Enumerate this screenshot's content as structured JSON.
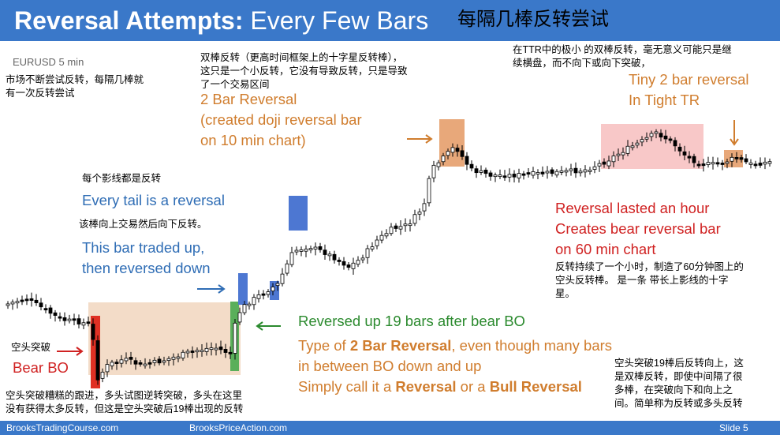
{
  "title": {
    "bold": "Reversal Attempts:",
    "rest": " Every Few Bars",
    "cn": "每隔几棒反转尝试"
  },
  "chart_label": "EURUSD 5 min",
  "notes": {
    "market_cn": "市场不断尝试反转，每隔几棒就\n有一次反转尝试",
    "two_bar_cn": "双棒反转（更高时间框架上的十字星反转棒），\n这只是一个小反转，它没有导致反转，只是导致\n了一个交易区间",
    "two_bar_en": "2 Bar Reversal\n(created doji reversal bar\non 10 min chart)",
    "ttr_cn": "在TTR中的极小 的双棒反转，毫无意义可能只是继\n续横盘，而不向下或向下突破，",
    "tiny_en": "Tiny 2 bar reversal\nIn Tight TR",
    "tail_cn": "每个影线都是反转",
    "tail_en": "Every tail is a reversal",
    "traded_cn": "该棒向上交易然后向下反转。",
    "traded_en": "This bar traded up,\nthen reversed down",
    "hour_en": "Reversal lasted an hour\nCreates bear reversal bar\non 60 min chart",
    "hour_cn": "反转持续了一个小时，制造了60分钟图上的\n空头反转棒。 是一条 带长上影线的十字\n星。",
    "bo_cn": "空头突破",
    "bo_en": "Bear BO",
    "reversed_up_en": "Reversed up 19 bars after bear BO",
    "type_line1_a": "Type of ",
    "type_line1_b": "2 Bar Reversal",
    "type_line1_c": ", even though many bars",
    "type_line2": "in between BO down and up",
    "type_line3_a": "Simply call it a ",
    "type_line3_b": "Reversal",
    "type_line3_c": " or a ",
    "type_line3_d": "Bull Reversal",
    "bottom_left_cn": "空头突破糟糕的跟进，多头试图逆转突破，多头在这里\n没有获得太多反转，但这是空头突破后19棒出现的反转",
    "bottom_right_cn": "空头突破19棒后反转向上，这\n是双棒反转，即使中间隔了很\n多棒，在突破向下和向上之\n间。简单称为反转或多头反转"
  },
  "footer": {
    "left": "BrooksTradingCourse.com",
    "center": "BrooksPriceAction.com",
    "slide": "Slide  5"
  },
  "colors": {
    "title_bar": "#3a78c9",
    "bull": "#ffffff",
    "bear": "#000000",
    "orange_box": "#f3c9a6",
    "pink_box": "#f8c8c8",
    "blue_box": "#4d77d2",
    "green_box": "#3aa548",
    "red_box": "#e03024"
  }
}
